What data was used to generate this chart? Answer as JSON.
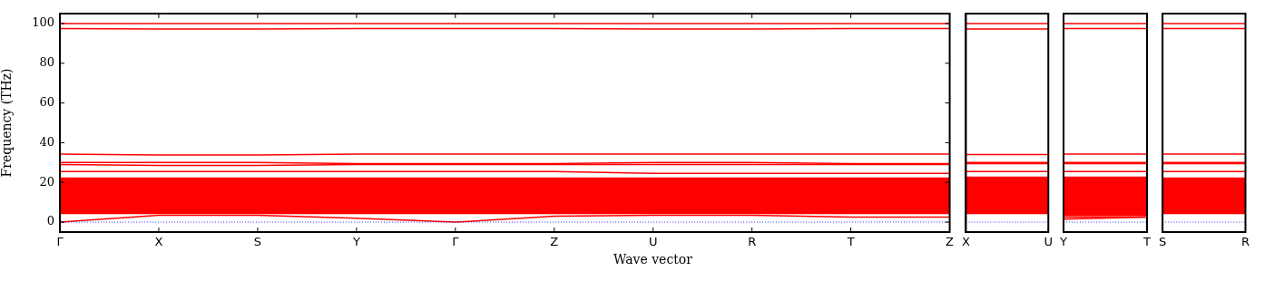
{
  "chart_data": [
    {
      "type": "line",
      "ylabel": "Frequency (THz)",
      "xlabel": "Wave vector",
      "ylim": [
        -5,
        105
      ],
      "yticks": [
        0,
        20,
        40,
        60,
        80,
        100
      ],
      "categories": [
        "Γ",
        "X",
        "S",
        "Y",
        "Γ",
        "Z",
        "U",
        "R",
        "T",
        "Z"
      ],
      "ref_lines": [
        {
          "axis": "y",
          "value": 0,
          "color": "#0000ff",
          "line_style": "dotted"
        }
      ],
      "bands": [
        {
          "axis": "y",
          "from": 4,
          "to": 22.5,
          "color": "#ff0000"
        }
      ],
      "series": [
        {
          "color": "#ff0000",
          "values": [
            100,
            100,
            100,
            100,
            100,
            100,
            100,
            100,
            100,
            100
          ]
        },
        {
          "color": "#ff0000",
          "values": [
            97.5,
            97.2,
            97.2,
            97.5,
            97.5,
            97.5,
            97.2,
            97.2,
            97.5,
            97.5
          ]
        },
        {
          "color": "#ff0000",
          "values": [
            34.3,
            33.8,
            33.8,
            34.3,
            34.3,
            34.3,
            34.3,
            34.3,
            34.3,
            34.3
          ]
        },
        {
          "color": "#ff0000",
          "values": [
            30,
            30,
            30,
            29.5,
            29.5,
            29.5,
            30,
            30,
            29.5,
            29.5
          ]
        },
        {
          "color": "#ff0000",
          "values": [
            29,
            28.5,
            28.5,
            29,
            29,
            29,
            29,
            29,
            29,
            29
          ]
        },
        {
          "color": "#ff0000",
          "values": [
            25.5,
            25.5,
            25.5,
            25.5,
            25.5,
            25.5,
            24.5,
            24.5,
            24.5,
            24.5
          ]
        },
        {
          "color": "#ff0000",
          "values": [
            0,
            3.5,
            3.5,
            2,
            0,
            3,
            3.5,
            3.5,
            2.5,
            2.5
          ]
        }
      ]
    },
    {
      "type": "line",
      "tick_labels": "x",
      "ylim": [
        -5,
        105
      ],
      "yticks": [
        0,
        20,
        40,
        60,
        80,
        100
      ],
      "categories": [
        "X",
        "U"
      ],
      "ref_lines": [
        {
          "axis": "y",
          "value": 0,
          "color": "#0000ff",
          "line_style": "dotted"
        }
      ],
      "bands": [
        {
          "axis": "y",
          "from": 4,
          "to": 23,
          "color": "#ff0000"
        }
      ],
      "series": [
        {
          "color": "#ff0000",
          "values": [
            100,
            100
          ]
        },
        {
          "color": "#ff0000",
          "values": [
            97.2,
            97.2
          ]
        },
        {
          "color": "#ff0000",
          "values": [
            34,
            34
          ]
        },
        {
          "color": "#ff0000",
          "values": [
            30,
            30
          ]
        },
        {
          "color": "#ff0000",
          "values": [
            29.5,
            29.5
          ]
        },
        {
          "color": "#ff0000",
          "values": [
            25.5,
            25.5
          ]
        }
      ]
    },
    {
      "type": "line",
      "tick_labels": "x",
      "ylim": [
        -5,
        105
      ],
      "yticks": [
        0,
        20,
        40,
        60,
        80,
        100
      ],
      "categories": [
        "Y",
        "T"
      ],
      "ref_lines": [
        {
          "axis": "y",
          "value": 0,
          "color": "#0000ff",
          "line_style": "dotted"
        }
      ],
      "bands": [
        {
          "axis": "y",
          "from": 3,
          "to": 23,
          "color": "#ff0000"
        }
      ],
      "series": [
        {
          "color": "#ff0000",
          "values": [
            100,
            100
          ]
        },
        {
          "color": "#ff0000",
          "values": [
            97.5,
            97.5
          ]
        },
        {
          "color": "#ff0000",
          "values": [
            34.3,
            34.3
          ]
        },
        {
          "color": "#ff0000",
          "values": [
            30,
            30
          ]
        },
        {
          "color": "#ff0000",
          "values": [
            29.5,
            29.5
          ]
        },
        {
          "color": "#ff0000",
          "values": [
            25.5,
            25.5
          ]
        },
        {
          "color": "#ff0000",
          "values": [
            1.5,
            2.5
          ]
        },
        {
          "color": "#ff0000",
          "values": [
            2.5,
            2.5
          ]
        }
      ]
    },
    {
      "type": "line",
      "tick_labels": "x",
      "ylim": [
        -5,
        105
      ],
      "yticks": [
        0,
        20,
        40,
        60,
        80,
        100
      ],
      "categories": [
        "S",
        "R"
      ],
      "ref_lines": [
        {
          "axis": "y",
          "value": 0,
          "color": "#0000ff",
          "line_style": "dotted"
        }
      ],
      "bands": [
        {
          "axis": "y",
          "from": 4,
          "to": 22.5,
          "color": "#ff0000"
        }
      ],
      "series": [
        {
          "color": "#ff0000",
          "values": [
            100,
            100
          ]
        },
        {
          "color": "#ff0000",
          "values": [
            97.5,
            97.5
          ]
        },
        {
          "color": "#ff0000",
          "values": [
            34.3,
            34.3
          ]
        },
        {
          "color": "#ff0000",
          "values": [
            30,
            30
          ]
        },
        {
          "color": "#ff0000",
          "values": [
            29.5,
            29.5
          ]
        },
        {
          "color": "#ff0000",
          "values": [
            25.5,
            25.5
          ]
        }
      ]
    }
  ]
}
